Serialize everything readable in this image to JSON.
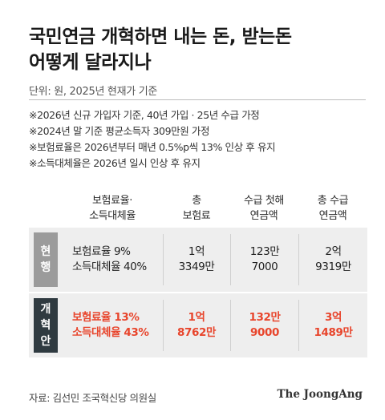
{
  "title": {
    "line1": "국민연금 개혁하면 내는 돈, 받는돈",
    "line2": "어떻게 달라지나"
  },
  "unit": "단위: 원, 2025년 현재가 기준",
  "notes": [
    "※2026년 신규 가입자 기준, 40년 가입 · 25년 수급 가정",
    "※2024년 말 기준 평균소득자 309만원 가정",
    "※보험료율은 2026년부터 매년 0.5%p씩 13% 인상 후 유지",
    "※소득대체율은 2026년 일시 인상 후 유지"
  ],
  "headers": {
    "rate": [
      "보험료율·",
      "소득대체율"
    ],
    "total_premium": [
      "총",
      "보험료"
    ],
    "first_annual": [
      "수급 첫해",
      "연금액"
    ],
    "total_benefit": [
      "총 수급",
      "연금액"
    ]
  },
  "rows": [
    {
      "label": [
        "현",
        "행"
      ],
      "rate": [
        "보험료율 9%",
        "소득대체율 40%"
      ],
      "total_premium": [
        "1억",
        "3349만"
      ],
      "first_annual": [
        "123만",
        "7000"
      ],
      "total_benefit": [
        "2억",
        "9319만"
      ]
    },
    {
      "label": [
        "개",
        "혁",
        "안"
      ],
      "rate": [
        "보험료율 13%",
        "소득대체율 43%"
      ],
      "total_premium": [
        "1억",
        "8762만"
      ],
      "first_annual": [
        "132만",
        "9000"
      ],
      "total_benefit": [
        "3억",
        "1489만"
      ]
    }
  ],
  "colors": {
    "accent": "#e8452c",
    "current_label_bg": "#9b9b9b",
    "reform_label_bg": "#2f3a40",
    "row_bg": "#eeeeee"
  },
  "source": "자료: 김선민 조국혁신당 의원실",
  "brand": "The JoongAng"
}
